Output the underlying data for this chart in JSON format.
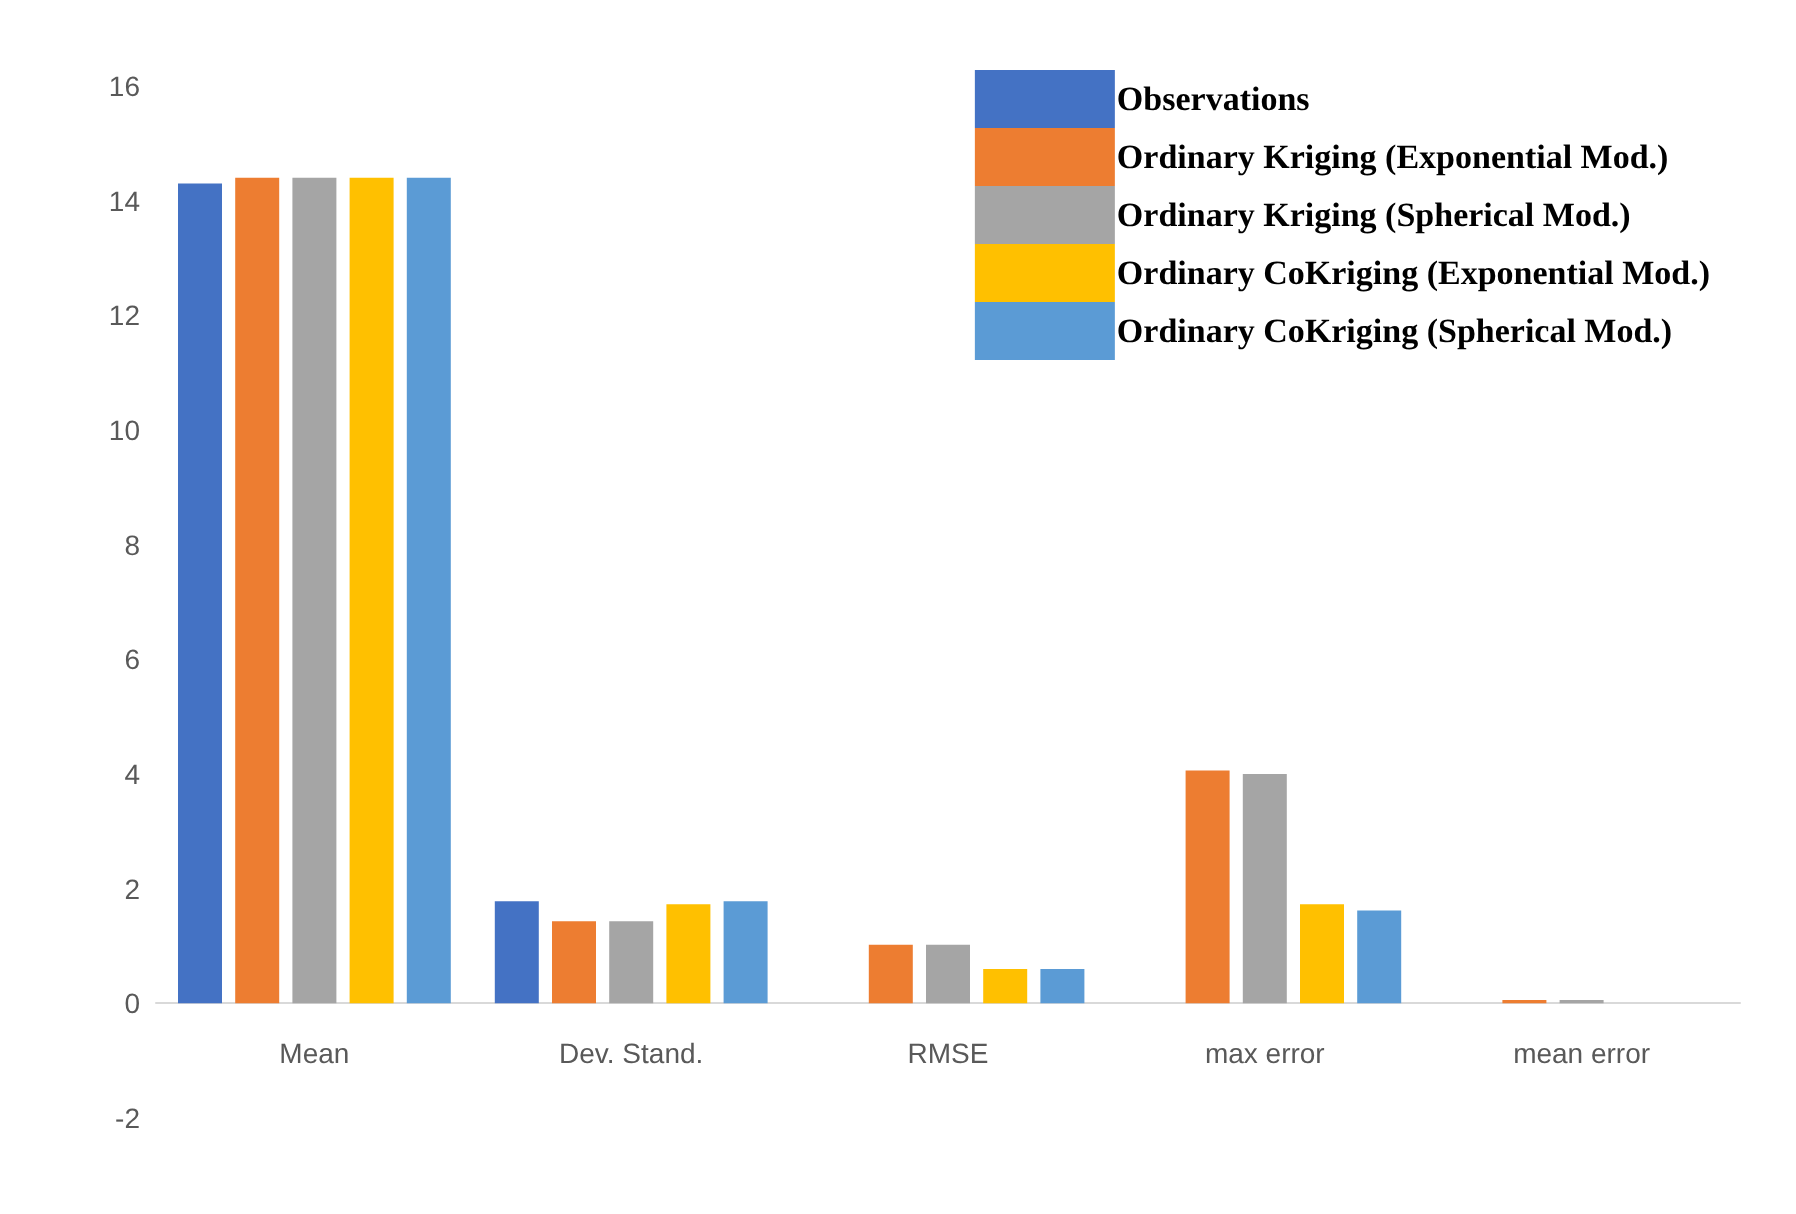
{
  "chart_data": {
    "type": "bar",
    "categories": [
      "Mean",
      "Dev. Stand.",
      "RMSE",
      "max error",
      "mean error"
    ],
    "series": [
      {
        "name": "Observations",
        "color": "#4472c4",
        "values": [
          14.3,
          1.78,
          null,
          null,
          null
        ]
      },
      {
        "name": "Ordinary Kriging (Exponential Mod.)",
        "color": "#ed7d31",
        "values": [
          14.4,
          1.43,
          1.02,
          4.06,
          0.06
        ]
      },
      {
        "name": "Ordinary Kriging (Spherical Mod.)",
        "color": "#a5a5a5",
        "values": [
          14.4,
          1.43,
          1.02,
          4.0,
          0.06
        ]
      },
      {
        "name": "Ordinary CoKriging (Exponential Mod.)",
        "color": "#ffc000",
        "values": [
          14.4,
          1.73,
          0.6,
          1.73,
          0
        ]
      },
      {
        "name": "Ordinary CoKriging (Spherical Mod.)",
        "color": "#5b9bd5",
        "values": [
          14.4,
          1.78,
          0.6,
          1.62,
          0
        ]
      }
    ],
    "ylim": [
      -2,
      16
    ],
    "yticks": [
      -2,
      0,
      2,
      4,
      6,
      8,
      10,
      12,
      14,
      16
    ],
    "grid": false,
    "legend": "top right"
  }
}
